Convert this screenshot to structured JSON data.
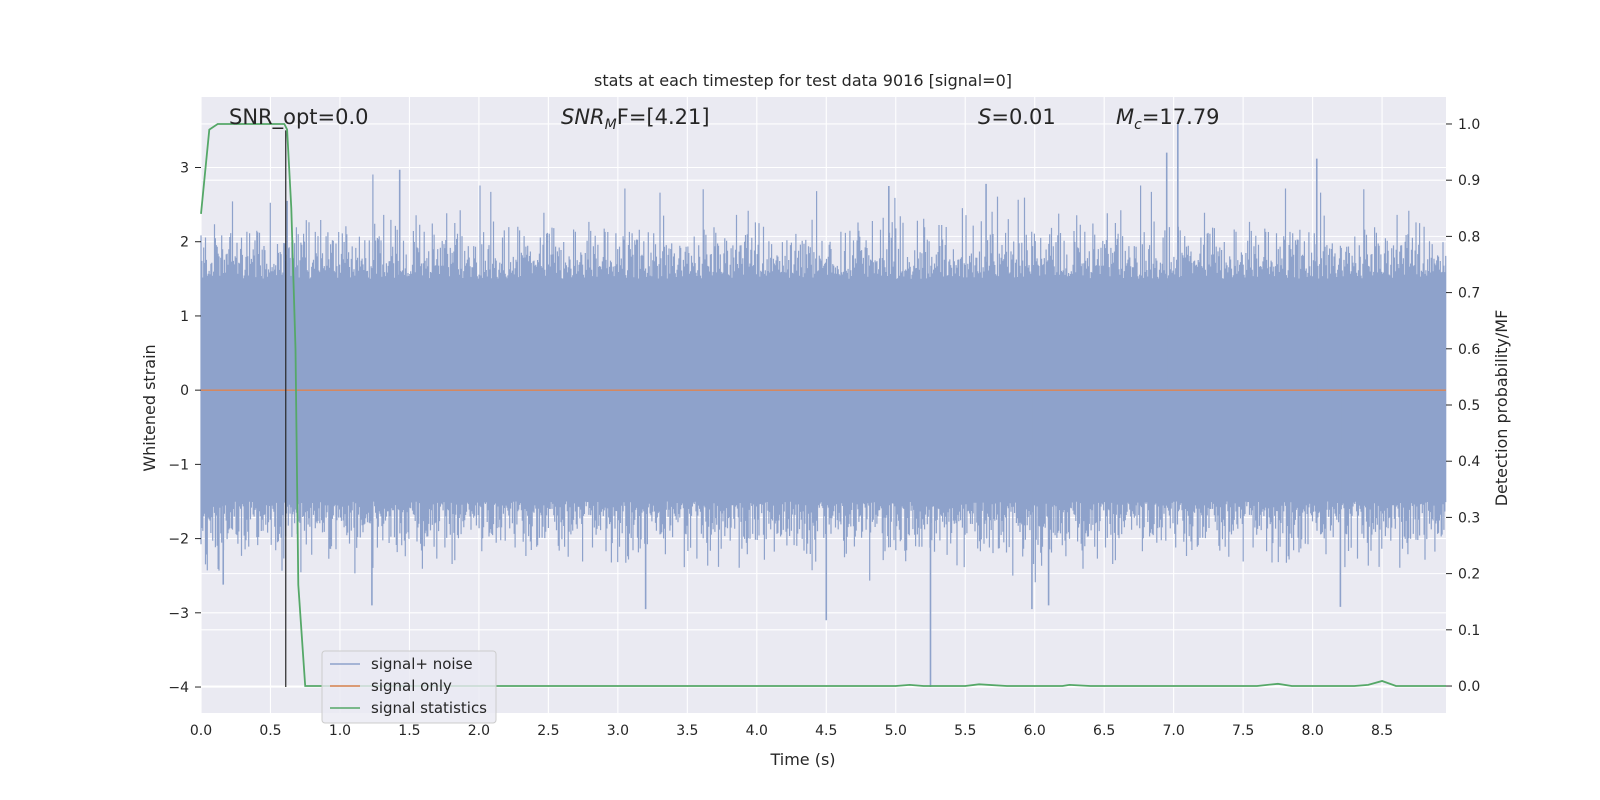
{
  "chart_data": {
    "type": "line",
    "title": "stats at each timestep for test data 9016 [signal=0]",
    "xlabel": "Time (s)",
    "ylabel": "Whitened strain",
    "y2label": "Detection probability/MF",
    "xlim": [
      0.0,
      8.96
    ],
    "ylim": [
      -4.35,
      3.95
    ],
    "y2lim": [
      -0.048,
      1.048
    ],
    "grid": true,
    "legend_position": "lower-left",
    "x_ticks": [
      "0.0",
      "0.5",
      "1.0",
      "1.5",
      "2.0",
      "2.5",
      "3.0",
      "3.5",
      "4.0",
      "4.5",
      "5.0",
      "5.5",
      "6.0",
      "6.5",
      "7.0",
      "7.5",
      "8.0",
      "8.5"
    ],
    "y_ticks": [
      "3",
      "2",
      "1",
      "0",
      "−1",
      "−2",
      "−3",
      "−4"
    ],
    "y2_ticks": [
      "1.0",
      "0.9",
      "0.8",
      "0.7",
      "0.6",
      "0.5",
      "0.4",
      "0.3",
      "0.2",
      "0.1",
      "0.0"
    ],
    "annotations": {
      "snr_opt": "SNR_opt=0.0",
      "snr_mf_main": "SNR",
      "snr_mf_sub": "M",
      "snr_mf_rest": "F=[4.21]",
      "s_sym": "S",
      "s_val": "=0.01",
      "mc_sym": "M",
      "mc_sub": "c",
      "mc_val": "=17.79"
    },
    "marker_time": 0.61,
    "series": [
      {
        "name": "signal+ noise",
        "color": "#8ea2cb",
        "sample_rate_hz": 2048,
        "envelope_upper_typical": 1.6,
        "envelope_lower_typical": -1.6,
        "peaks": [
          [
            0.62,
            2.55
          ],
          [
            1.43,
            2.97
          ],
          [
            4.95,
            2.75
          ],
          [
            5.65,
            2.78
          ],
          [
            6.95,
            3.2
          ],
          [
            7.03,
            3.6
          ],
          [
            8.03,
            3.12
          ],
          [
            0.16,
            -2.62
          ],
          [
            1.23,
            -2.9
          ],
          [
            3.2,
            -2.95
          ],
          [
            4.5,
            -3.1
          ],
          [
            5.25,
            -4.0
          ],
          [
            5.98,
            -2.95
          ],
          [
            6.1,
            -2.9
          ],
          [
            8.2,
            -2.92
          ]
        ]
      },
      {
        "name": "signal only",
        "color": "#dd8452",
        "constant": 0.0
      },
      {
        "name": "signal statistics",
        "color": "#55a868",
        "x": [
          0.0,
          0.06,
          0.12,
          0.3,
          0.5,
          0.6,
          0.62,
          0.65,
          0.68,
          0.7,
          0.75,
          5.0,
          5.1,
          5.2,
          5.5,
          5.6,
          5.8,
          6.2,
          6.25,
          6.4,
          7.6,
          7.75,
          7.85,
          8.3,
          8.4,
          8.5,
          8.6,
          8.96
        ],
        "y": [
          0.84,
          0.99,
          1.0,
          1.0,
          1.0,
          1.0,
          0.99,
          0.85,
          0.6,
          0.18,
          0.0,
          0.0,
          0.002,
          0.0,
          0.0,
          0.003,
          0.0,
          0.0,
          0.002,
          0.0,
          0.0,
          0.004,
          0.0,
          0.0,
          0.002,
          0.009,
          0.0,
          0.0
        ]
      }
    ]
  }
}
